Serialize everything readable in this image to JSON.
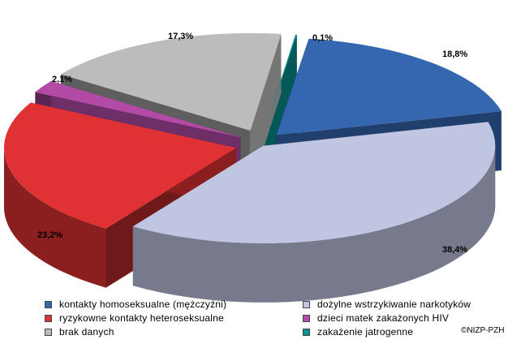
{
  "chart_data": {
    "type": "pie",
    "title": "",
    "three_d": true,
    "exploded": true,
    "slices": [
      {
        "label": "kontakty homoseksualne (mężczyźni)",
        "value": 18.8,
        "value_label": "18,8%",
        "color": "#3566b0"
      },
      {
        "label": "dożylne wstrzykiwanie narkotyków",
        "value": 38.4,
        "value_label": "38,4%",
        "color": "#c0c5e2"
      },
      {
        "label": "ryzykowne kontakty heteroseksualne",
        "value": 23.2,
        "value_label": "23,2%",
        "color": "#e03234"
      },
      {
        "label": "dzieci matek zakażonych HIV",
        "value": 2.1,
        "value_label": "2,1%",
        "color": "#b24aa6"
      },
      {
        "label": "brak danych",
        "value": 17.3,
        "value_label": "17,3%",
        "color": "#bcbcbc"
      },
      {
        "label": "zakażenie jatrogenne",
        "value": 0.1,
        "value_label": "0,1%",
        "color": "#07908e"
      }
    ],
    "legend_position": "bottom"
  },
  "legend": {
    "items": [
      {
        "label": "kontakty homoseksualne (mężczyźni)",
        "color": "#3566b0"
      },
      {
        "label": "dożylne wstrzykiwanie narkotyków",
        "color": "#c0c5e2"
      },
      {
        "label": "ryzykowne kontakty heteroseksualne",
        "color": "#e03234"
      },
      {
        "label": "dzieci matek zakażonych HIV",
        "color": "#b24aa6"
      },
      {
        "label": "brak danych",
        "color": "#bcbcbc"
      },
      {
        "label": "zakażenie jatrogenne",
        "color": "#07908e"
      }
    ]
  },
  "copyright": "©NIZP-PZH"
}
